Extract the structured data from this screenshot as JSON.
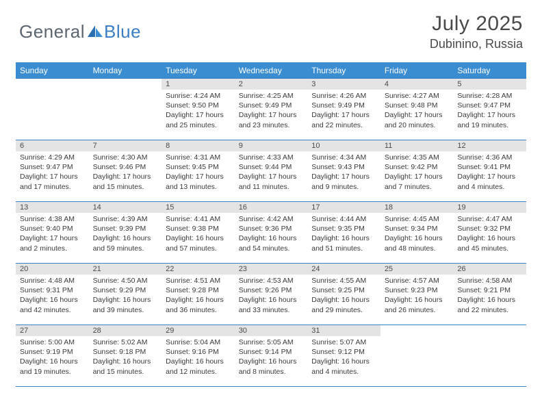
{
  "brand": {
    "part1": "General",
    "part2": "Blue"
  },
  "title": {
    "month": "July 2025",
    "location": "Dubinino, Russia"
  },
  "dayHeaders": [
    "Sunday",
    "Monday",
    "Tuesday",
    "Wednesday",
    "Thursday",
    "Friday",
    "Saturday"
  ],
  "colors": {
    "headerBg": "#3a8dd0",
    "rowBorder": "#3a7fc4",
    "dayNumBg": "#e4e4e4",
    "text": "#3a3a3a",
    "logoGray": "#5a6570",
    "logoBlue": "#3a7fc4"
  },
  "layout": {
    "pageWidth": 792,
    "pageHeight": 612,
    "calendarWidth": 746,
    "cols": 7,
    "rows": 5,
    "headerFontSize": 12,
    "dayNumFontSize": 11,
    "detailFontSize": 10.5
  },
  "weeks": [
    [
      null,
      null,
      {
        "n": "1",
        "sr": "4:24 AM",
        "ss": "9:50 PM",
        "dl": "17 hours and 25 minutes."
      },
      {
        "n": "2",
        "sr": "4:25 AM",
        "ss": "9:49 PM",
        "dl": "17 hours and 23 minutes."
      },
      {
        "n": "3",
        "sr": "4:26 AM",
        "ss": "9:49 PM",
        "dl": "17 hours and 22 minutes."
      },
      {
        "n": "4",
        "sr": "4:27 AM",
        "ss": "9:48 PM",
        "dl": "17 hours and 20 minutes."
      },
      {
        "n": "5",
        "sr": "4:28 AM",
        "ss": "9:47 PM",
        "dl": "17 hours and 19 minutes."
      }
    ],
    [
      {
        "n": "6",
        "sr": "4:29 AM",
        "ss": "9:47 PM",
        "dl": "17 hours and 17 minutes."
      },
      {
        "n": "7",
        "sr": "4:30 AM",
        "ss": "9:46 PM",
        "dl": "17 hours and 15 minutes."
      },
      {
        "n": "8",
        "sr": "4:31 AM",
        "ss": "9:45 PM",
        "dl": "17 hours and 13 minutes."
      },
      {
        "n": "9",
        "sr": "4:33 AM",
        "ss": "9:44 PM",
        "dl": "17 hours and 11 minutes."
      },
      {
        "n": "10",
        "sr": "4:34 AM",
        "ss": "9:43 PM",
        "dl": "17 hours and 9 minutes."
      },
      {
        "n": "11",
        "sr": "4:35 AM",
        "ss": "9:42 PM",
        "dl": "17 hours and 7 minutes."
      },
      {
        "n": "12",
        "sr": "4:36 AM",
        "ss": "9:41 PM",
        "dl": "17 hours and 4 minutes."
      }
    ],
    [
      {
        "n": "13",
        "sr": "4:38 AM",
        "ss": "9:40 PM",
        "dl": "17 hours and 2 minutes."
      },
      {
        "n": "14",
        "sr": "4:39 AM",
        "ss": "9:39 PM",
        "dl": "16 hours and 59 minutes."
      },
      {
        "n": "15",
        "sr": "4:41 AM",
        "ss": "9:38 PM",
        "dl": "16 hours and 57 minutes."
      },
      {
        "n": "16",
        "sr": "4:42 AM",
        "ss": "9:36 PM",
        "dl": "16 hours and 54 minutes."
      },
      {
        "n": "17",
        "sr": "4:44 AM",
        "ss": "9:35 PM",
        "dl": "16 hours and 51 minutes."
      },
      {
        "n": "18",
        "sr": "4:45 AM",
        "ss": "9:34 PM",
        "dl": "16 hours and 48 minutes."
      },
      {
        "n": "19",
        "sr": "4:47 AM",
        "ss": "9:32 PM",
        "dl": "16 hours and 45 minutes."
      }
    ],
    [
      {
        "n": "20",
        "sr": "4:48 AM",
        "ss": "9:31 PM",
        "dl": "16 hours and 42 minutes."
      },
      {
        "n": "21",
        "sr": "4:50 AM",
        "ss": "9:29 PM",
        "dl": "16 hours and 39 minutes."
      },
      {
        "n": "22",
        "sr": "4:51 AM",
        "ss": "9:28 PM",
        "dl": "16 hours and 36 minutes."
      },
      {
        "n": "23",
        "sr": "4:53 AM",
        "ss": "9:26 PM",
        "dl": "16 hours and 33 minutes."
      },
      {
        "n": "24",
        "sr": "4:55 AM",
        "ss": "9:25 PM",
        "dl": "16 hours and 29 minutes."
      },
      {
        "n": "25",
        "sr": "4:57 AM",
        "ss": "9:23 PM",
        "dl": "16 hours and 26 minutes."
      },
      {
        "n": "26",
        "sr": "4:58 AM",
        "ss": "9:21 PM",
        "dl": "16 hours and 22 minutes."
      }
    ],
    [
      {
        "n": "27",
        "sr": "5:00 AM",
        "ss": "9:19 PM",
        "dl": "16 hours and 19 minutes."
      },
      {
        "n": "28",
        "sr": "5:02 AM",
        "ss": "9:18 PM",
        "dl": "16 hours and 15 minutes."
      },
      {
        "n": "29",
        "sr": "5:04 AM",
        "ss": "9:16 PM",
        "dl": "16 hours and 12 minutes."
      },
      {
        "n": "30",
        "sr": "5:05 AM",
        "ss": "9:14 PM",
        "dl": "16 hours and 8 minutes."
      },
      {
        "n": "31",
        "sr": "5:07 AM",
        "ss": "9:12 PM",
        "dl": "16 hours and 4 minutes."
      },
      null,
      null
    ]
  ],
  "labels": {
    "sunrise": "Sunrise: ",
    "sunset": "Sunset: ",
    "daylight": "Daylight: "
  }
}
